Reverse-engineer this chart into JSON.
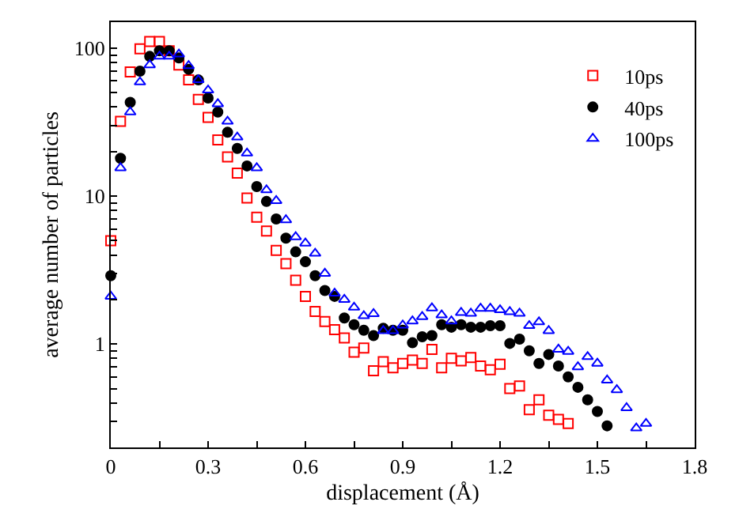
{
  "chart_data": {
    "type": "scatter",
    "xlabel": "displacement (Å)",
    "ylabel": "average number of particles",
    "log": "y",
    "legend": "top right",
    "xlim": [
      0,
      1.8
    ],
    "xticks": [
      0,
      {
        "value": 0.15,
        "label": null
      },
      0.3,
      {
        "value": 0.45,
        "label": null
      },
      0.6,
      {
        "value": 0.75,
        "label": null
      },
      0.9,
      {
        "value": 1.05,
        "label": null
      },
      1.2,
      {
        "value": 1.35,
        "label": null
      },
      1.5,
      {
        "value": 1.65,
        "label": null
      },
      1.8
    ],
    "ylim": [
      0.2,
      150
    ],
    "yticks": [
      {
        "value": 0.3,
        "label": null
      },
      {
        "value": 0.4,
        "label": null
      },
      {
        "value": 0.5,
        "label": null
      },
      {
        "value": 0.6,
        "label": null
      },
      {
        "value": 0.7,
        "label": null
      },
      {
        "value": 0.8,
        "label": null
      },
      {
        "value": 0.9,
        "label": null
      },
      1,
      {
        "value": 2,
        "label": null
      },
      {
        "value": 3,
        "label": null
      },
      {
        "value": 4,
        "label": null
      },
      {
        "value": 5,
        "label": null
      },
      {
        "value": 6,
        "label": null
      },
      {
        "value": 7,
        "label": null
      },
      {
        "value": 8,
        "label": null
      },
      {
        "value": 9,
        "label": null
      },
      10,
      {
        "value": 20,
        "label": null
      },
      {
        "value": 30,
        "label": null
      },
      {
        "value": 40,
        "label": null
      },
      {
        "value": 50,
        "label": null
      },
      {
        "value": 60,
        "label": null
      },
      {
        "value": 70,
        "label": null
      },
      {
        "value": 80,
        "label": null
      },
      {
        "value": 90,
        "label": null
      },
      100
    ],
    "series": [
      {
        "name": "10ps",
        "color": "#ff0000",
        "marker": "square",
        "x": [
          0,
          0.03,
          0.06,
          0.09,
          0.12,
          0.15,
          0.18,
          0.21,
          0.24,
          0.27,
          0.3,
          0.33,
          0.36,
          0.39,
          0.42,
          0.45,
          0.48,
          0.51,
          0.54,
          0.57,
          0.6,
          0.63,
          0.66,
          0.69,
          0.72,
          0.75,
          0.78,
          0.81,
          0.84,
          0.87,
          0.9,
          0.93,
          0.96,
          0.99,
          1.02,
          1.05,
          1.08,
          1.11,
          1.14,
          1.17,
          1.2,
          1.23,
          1.26,
          1.29,
          1.32,
          1.35,
          1.38,
          1.41
        ],
        "values": [
          5.0,
          32,
          69,
          99,
          111,
          111,
          96,
          77,
          61,
          45,
          34,
          24,
          18.4,
          14.3,
          9.7,
          7.2,
          5.8,
          4.3,
          3.5,
          2.7,
          2.1,
          1.66,
          1.42,
          1.25,
          1.1,
          0.88,
          0.94,
          0.66,
          0.76,
          0.69,
          0.74,
          0.78,
          0.74,
          0.92,
          0.69,
          0.8,
          0.77,
          0.81,
          0.71,
          0.67,
          0.73,
          0.5,
          0.52,
          0.36,
          0.42,
          0.33,
          0.31,
          0.29
        ]
      },
      {
        "name": "40ps",
        "color": "#000000",
        "marker": "circle",
        "x": [
          0,
          0.03,
          0.06,
          0.09,
          0.12,
          0.15,
          0.18,
          0.21,
          0.24,
          0.27,
          0.3,
          0.33,
          0.36,
          0.39,
          0.42,
          0.45,
          0.48,
          0.51,
          0.54,
          0.57,
          0.6,
          0.63,
          0.66,
          0.69,
          0.72,
          0.75,
          0.78,
          0.81,
          0.84,
          0.87,
          0.9,
          0.93,
          0.96,
          0.99,
          1.02,
          1.05,
          1.08,
          1.11,
          1.14,
          1.17,
          1.2,
          1.23,
          1.26,
          1.29,
          1.32,
          1.35,
          1.38,
          1.41,
          1.44,
          1.47,
          1.5,
          1.53
        ],
        "values": [
          2.9,
          18,
          43,
          70,
          88,
          96,
          96,
          86,
          72,
          61,
          46,
          37,
          27,
          21,
          16,
          11.6,
          9.2,
          7.0,
          5.2,
          4.2,
          3.6,
          2.9,
          2.3,
          2.1,
          1.5,
          1.35,
          1.24,
          1.14,
          1.28,
          1.24,
          1.24,
          1.02,
          1.12,
          1.14,
          1.35,
          1.3,
          1.35,
          1.3,
          1.3,
          1.33,
          1.33,
          1.01,
          1.08,
          0.9,
          0.74,
          0.85,
          0.71,
          0.6,
          0.51,
          0.42,
          0.35,
          0.28
        ]
      },
      {
        "name": "100ps",
        "color": "#0000ff",
        "marker": "triangle",
        "x": [
          0,
          0.03,
          0.06,
          0.09,
          0.12,
          0.15,
          0.18,
          0.21,
          0.24,
          0.27,
          0.3,
          0.33,
          0.36,
          0.39,
          0.42,
          0.45,
          0.48,
          0.51,
          0.54,
          0.57,
          0.6,
          0.63,
          0.66,
          0.69,
          0.72,
          0.75,
          0.78,
          0.81,
          0.84,
          0.87,
          0.9,
          0.93,
          0.96,
          0.99,
          1.02,
          1.05,
          1.08,
          1.11,
          1.14,
          1.17,
          1.2,
          1.23,
          1.26,
          1.29,
          1.32,
          1.35,
          1.38,
          1.41,
          1.44,
          1.47,
          1.5,
          1.53,
          1.56,
          1.59,
          1.62,
          1.65
        ],
        "values": [
          2.1,
          15.5,
          37,
          59,
          77,
          88,
          88,
          91,
          76,
          61,
          52,
          42,
          32,
          25,
          19.5,
          15.5,
          11,
          9.3,
          6.9,
          5.3,
          4.8,
          4.1,
          3.0,
          2.2,
          2.0,
          1.77,
          1.55,
          1.6,
          1.23,
          1.23,
          1.34,
          1.43,
          1.53,
          1.75,
          1.57,
          1.43,
          1.63,
          1.61,
          1.74,
          1.74,
          1.7,
          1.65,
          1.61,
          1.33,
          1.41,
          1.23,
          0.92,
          0.89,
          0.7,
          0.82,
          0.74,
          0.57,
          0.49,
          0.37,
          0.27,
          0.29
        ]
      }
    ]
  }
}
